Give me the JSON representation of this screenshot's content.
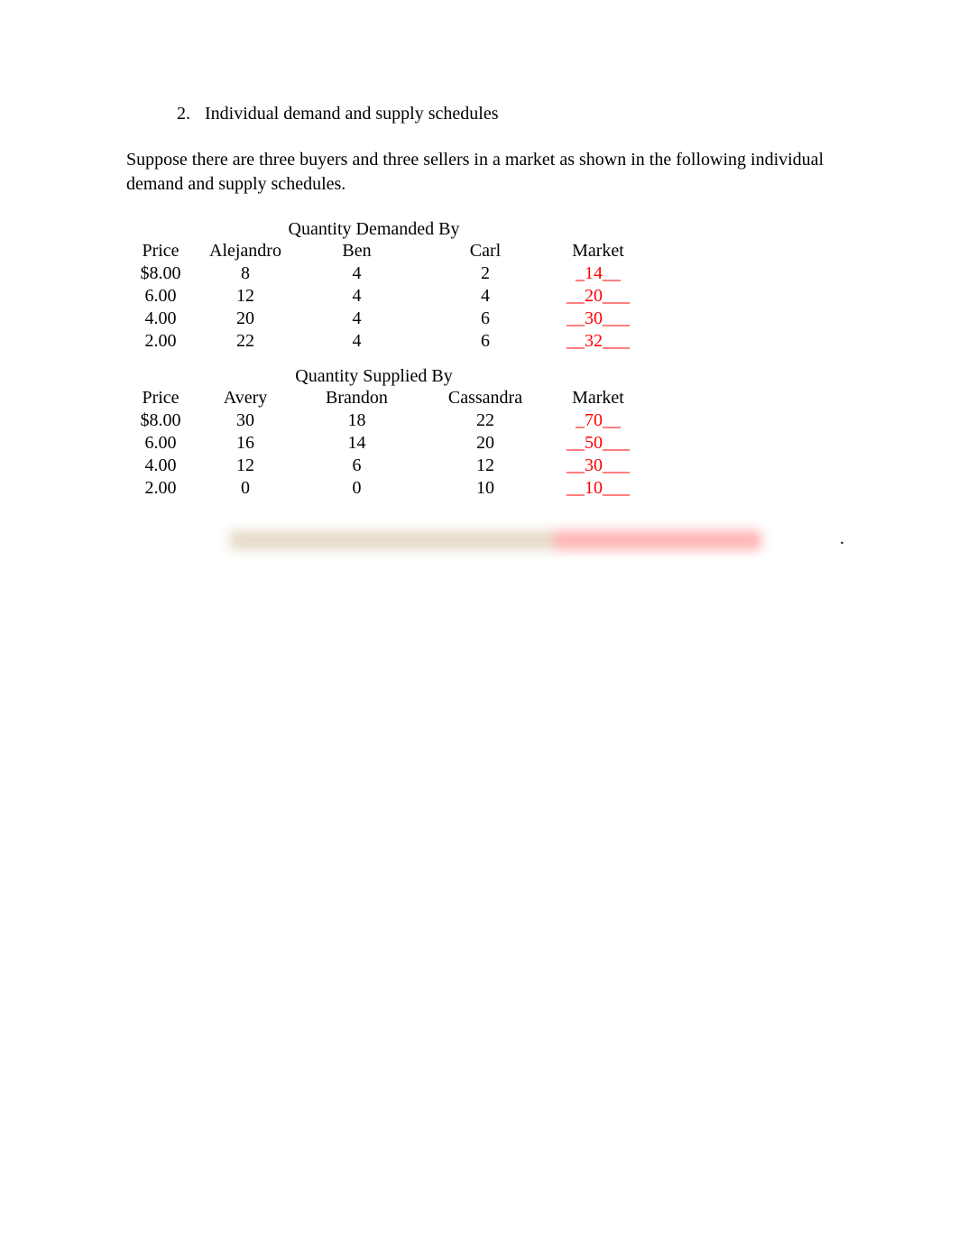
{
  "colors": {
    "text": "#000000",
    "answer": "#ff0000",
    "background": "#ffffff"
  },
  "typography": {
    "family": "Times New Roman",
    "body_size_pt": 15
  },
  "question": {
    "number": "2.",
    "title": "Individual demand and supply schedules"
  },
  "intro": "Suppose there are three buyers and three sellers in a market as shown in the following individual demand and supply schedules.",
  "demand": {
    "type": "table",
    "spanning_header": "Quantity Demanded By",
    "columns": [
      "Price",
      "Alejandro",
      "Ben",
      "Carl",
      "Market"
    ],
    "rows": [
      {
        "price": "$8.00",
        "a": "8",
        "b": "4",
        "c": "2",
        "market": "_14__"
      },
      {
        "price": "6.00",
        "a": "12",
        "b": "4",
        "c": "4",
        "market": "__20___"
      },
      {
        "price": "4.00",
        "a": "20",
        "b": "4",
        "c": "6",
        "market": "__30___"
      },
      {
        "price": "2.00",
        "a": "22",
        "b": "4",
        "c": "6",
        "market": "__32___"
      }
    ]
  },
  "supply": {
    "type": "table",
    "spanning_header": "Quantity Supplied By",
    "columns": [
      "Price",
      "Avery",
      "Brandon",
      "Cassandra",
      "Market"
    ],
    "rows": [
      {
        "price": "$8.00",
        "a": "30",
        "b": "18",
        "c": "22",
        "market": "_70__"
      },
      {
        "price": "6.00",
        "a": "16",
        "b": "14",
        "c": "20",
        "market": "__50___"
      },
      {
        "price": "4.00",
        "a": "12",
        "b": "6",
        "c": "12",
        "market": "__30___"
      },
      {
        "price": "2.00",
        "a": "0",
        "b": "0",
        "c": "10",
        "market": "__10___"
      }
    ]
  },
  "blurred": {
    "trailing": "."
  }
}
